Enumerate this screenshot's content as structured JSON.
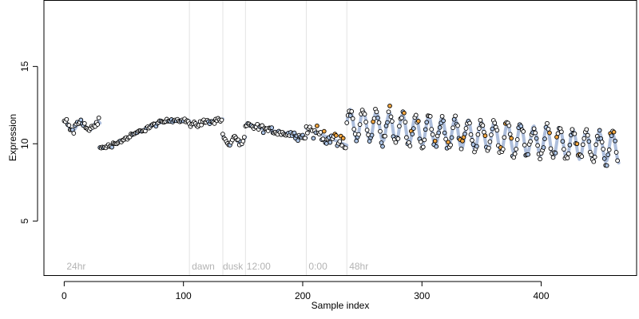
{
  "chart_data": {
    "type": "scatter",
    "title": "",
    "xlabel": "Sample index",
    "ylabel": "Expression",
    "xlim": [
      -17,
      480
    ],
    "ylim": [
      1.5,
      19.3
    ],
    "x_ticks": [
      0,
      100,
      200,
      300,
      400
    ],
    "y_ticks": [
      5,
      10,
      15
    ],
    "grid": false,
    "phase_lines": [
      105,
      133,
      152,
      203,
      237
    ],
    "phase_labels": [
      {
        "x": 2,
        "text": "24hr"
      },
      {
        "x": 107,
        "text": "dawn"
      },
      {
        "x": 133,
        "text": "dusk"
      },
      {
        "x": 153,
        "text": "12:00"
      },
      {
        "x": 205,
        "text": "0:00"
      },
      {
        "x": 239,
        "text": "48hr"
      }
    ],
    "colors": {
      "fit_line": "#9fb3d6",
      "point_fill_low": "#aec6e8",
      "point_fill_high": "#f2a640",
      "phase_line": "#e3e3e3",
      "phase_label": "#b3b3b3",
      "point_edge": "#000000"
    },
    "series": [
      {
        "segments": [
          {
            "x0": 0,
            "x1": 30,
            "kind": "cos",
            "a": 11.15,
            "b": 0.3,
            "period": 14,
            "noise": 0.22
          },
          {
            "x0": 30,
            "x1": 105,
            "kind": "cos",
            "a": 10.6,
            "b": 0.95,
            "period": 150,
            "phase": 66,
            "noise": 0.1
          },
          {
            "x0": 105,
            "x1": 133,
            "kind": "lin",
            "y0": 11.2,
            "y1": 11.6,
            "noise": 0.14
          },
          {
            "x0": 133,
            "x1": 152,
            "kind": "cos",
            "a": 10.2,
            "b": 0.3,
            "period": 10,
            "noise": 0.12
          },
          {
            "x0": 152,
            "x1": 203,
            "kind": "lin",
            "y0": 11.2,
            "y1": 10.4,
            "noise": 0.16
          },
          {
            "x0": 203,
            "x1": 237,
            "kind": "lin",
            "y0": 11.0,
            "y1": 9.9,
            "noise": 0.3
          },
          {
            "x0": 237,
            "x1": 465,
            "kind": "osc",
            "a": 11.3,
            "slope": -0.007,
            "b": 0.95,
            "period": 11,
            "noise": 0.25
          }
        ]
      }
    ]
  }
}
